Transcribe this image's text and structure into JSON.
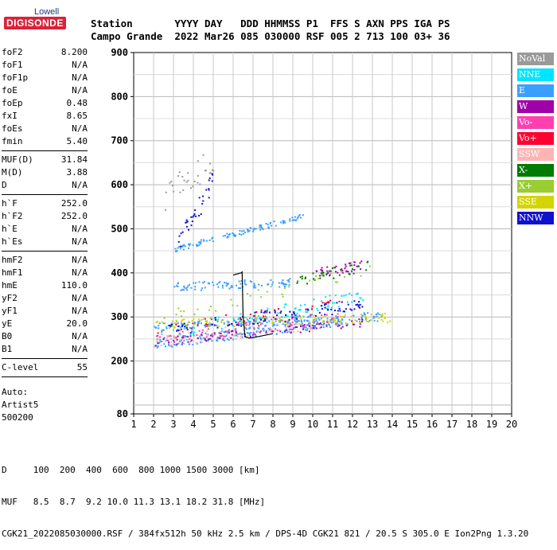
{
  "logo": {
    "brand": "Lowell",
    "product": "DIGISONDE"
  },
  "header": {
    "line1": "Station       YYYY DAY   DDD HHMMSS P1  FFS S AXN PPS IGA PS",
    "line2": "Campo Grande  2022 Mar26 085 030000 RSF 005 2 713 100 03+ 36"
  },
  "params": [
    {
      "k": "foF2",
      "v": "8.200"
    },
    {
      "k": "foF1",
      "v": "N/A"
    },
    {
      "k": "foF1p",
      "v": "N/A"
    },
    {
      "k": "foE",
      "v": "N/A"
    },
    {
      "k": "foEp",
      "v": "0.48"
    },
    {
      "k": "fxI",
      "v": "8.65"
    },
    {
      "k": "foEs",
      "v": "N/A"
    },
    {
      "k": "fmin",
      "v": "5.40",
      "sep": true
    },
    {
      "k": "MUF(D)",
      "v": "31.84"
    },
    {
      "k": "M(D)",
      "v": "3.88"
    },
    {
      "k": "D",
      "v": "N/A",
      "sep": true
    },
    {
      "k": "h`F",
      "v": "252.0"
    },
    {
      "k": "h`F2",
      "v": "252.0"
    },
    {
      "k": "h`E",
      "v": "N/A"
    },
    {
      "k": "h`Es",
      "v": "N/A",
      "sep": true
    },
    {
      "k": "hmF2",
      "v": "N/A"
    },
    {
      "k": "hmF1",
      "v": "N/A"
    },
    {
      "k": "hmE",
      "v": "110.0"
    },
    {
      "k": "yF2",
      "v": "N/A"
    },
    {
      "k": "yF1",
      "v": "N/A"
    },
    {
      "k": "yE",
      "v": "20.0"
    },
    {
      "k": "B0",
      "v": "N/A"
    },
    {
      "k": "B1",
      "v": "N/A",
      "sep": true
    },
    {
      "k": "C-level",
      "v": "55",
      "sep": true
    }
  ],
  "auto": [
    "Auto:",
    "Artist5",
    "500200"
  ],
  "legend": [
    {
      "label": "NoVal",
      "bg": "#9a9a9a",
      "fg": "#ffffff"
    },
    {
      "label": "NNE",
      "bg": "#00e5ff",
      "fg": "#ffffff"
    },
    {
      "label": "E",
      "bg": "#3aa0ff",
      "fg": "#ffffff"
    },
    {
      "label": "W",
      "bg": "#a000a8",
      "fg": "#ffffff"
    },
    {
      "label": "Vo-",
      "bg": "#ff3fb0",
      "fg": "#ffffff"
    },
    {
      "label": "Vo+",
      "bg": "#ff0030",
      "fg": "#ffffff"
    },
    {
      "label": "SSW",
      "bg": "#ffb4b4",
      "fg": "#ffffff"
    },
    {
      "label": "X-",
      "bg": "#007a00",
      "fg": "#ffffff"
    },
    {
      "label": "X+",
      "bg": "#9acd32",
      "fg": "#ffffff"
    },
    {
      "label": "SSE",
      "bg": "#d4d400",
      "fg": "#ffffff"
    },
    {
      "label": "NNW",
      "bg": "#1010d0",
      "fg": "#ffffff"
    }
  ],
  "bottom": {
    "line1": "D     100  200  400  600  800 1000 1500 3000 [km]",
    "line2": "MUF   8.5  8.7  9.2 10.0 11.3 13.1 18.2 31.8 [MHz]",
    "line3": "CGK21_2022085030000.RSF / 384fx512h 50 kHz 2.5 km / DPS-4D CGK21 821 / 20.5 S 305.0 E Ion2Png 1.3.20"
  },
  "chart_data": {
    "type": "scatter",
    "x_ticks": [
      "1",
      "2",
      "3",
      "4",
      "5",
      "6",
      "7",
      "8",
      "9",
      "10",
      "11",
      "12",
      "13",
      "14",
      "15",
      "16",
      "17",
      "18",
      "19",
      "20"
    ],
    "y_ticks": [
      "80",
      "200",
      "300",
      "400",
      "500",
      "600",
      "700",
      "800",
      "900"
    ],
    "xlim": [
      1,
      20
    ],
    "ylim": [
      80,
      900
    ],
    "grid": true,
    "trace": {
      "name": "",
      "color": "#000000",
      "x": [
        6.0,
        6.4,
        6.45,
        6.5,
        6.6,
        6.8,
        7.0,
        8.0
      ],
      "y": [
        395,
        400,
        402,
        300,
        255,
        252,
        253,
        262
      ]
    },
    "series": [
      {
        "name": "E",
        "color": "#3aa0ff",
        "x0": 2.0,
        "x1": 13.5,
        "y0": 240,
        "y1": 305,
        "spread": 12,
        "n": 260
      },
      {
        "name": "E",
        "color": "#3aa0ff",
        "x0": 2.0,
        "x1": 10.0,
        "y0": 280,
        "y1": 300,
        "spread": 8,
        "n": 120
      },
      {
        "name": "E",
        "color": "#3aa0ff",
        "x0": 3.0,
        "x1": 9.5,
        "y0": 455,
        "y1": 530,
        "spread": 6,
        "n": 110
      },
      {
        "name": "E",
        "color": "#3aa0ff",
        "x0": 3.0,
        "x1": 9.0,
        "y0": 370,
        "y1": 380,
        "spread": 10,
        "n": 90
      },
      {
        "name": "NNE",
        "color": "#00e5ff",
        "x0": 2.0,
        "x1": 12.5,
        "y0": 260,
        "y1": 350,
        "spread": 15,
        "n": 110
      },
      {
        "name": "W",
        "color": "#a000a8",
        "x0": 2.0,
        "x1": 12.5,
        "y0": 245,
        "y1": 290,
        "spread": 10,
        "n": 90
      },
      {
        "name": "W",
        "color": "#a000a8",
        "x0": 10.0,
        "x1": 12.5,
        "y0": 400,
        "y1": 420,
        "spread": 10,
        "n": 40
      },
      {
        "name": "Vo-",
        "color": "#ff3fb0",
        "x0": 2.0,
        "x1": 11.5,
        "y0": 255,
        "y1": 300,
        "spread": 15,
        "n": 70
      },
      {
        "name": "Vo+",
        "color": "#ff0030",
        "x0": 2.0,
        "x1": 11.5,
        "y0": 270,
        "y1": 330,
        "spread": 15,
        "n": 40
      },
      {
        "name": "SSW",
        "color": "#ffb4b4",
        "x0": 2.0,
        "x1": 10.0,
        "y0": 245,
        "y1": 285,
        "spread": 15,
        "n": 80
      },
      {
        "name": "X-",
        "color": "#007a00",
        "x0": 9.0,
        "x1": 12.8,
        "y0": 380,
        "y1": 420,
        "spread": 12,
        "n": 35
      },
      {
        "name": "X+",
        "color": "#9acd32",
        "x0": 2.5,
        "x1": 13.0,
        "y0": 300,
        "y1": 410,
        "spread": 15,
        "n": 40
      },
      {
        "name": "SSE",
        "color": "#d4d400",
        "x0": 2.0,
        "x1": 14.0,
        "y0": 285,
        "y1": 300,
        "spread": 10,
        "n": 110
      },
      {
        "name": "NNW",
        "color": "#1010d0",
        "x0": 2.5,
        "x1": 12.5,
        "y0": 270,
        "y1": 330,
        "spread": 15,
        "n": 90
      },
      {
        "name": "NNW",
        "color": "#1010d0",
        "x0": 3.2,
        "x1": 5.0,
        "y0": 470,
        "y1": 610,
        "spread": 25,
        "n": 35
      },
      {
        "name": "NoVal",
        "color": "#9a9a9a",
        "x0": 2.5,
        "x1": 5.0,
        "y0": 560,
        "y1": 670,
        "spread": 40,
        "n": 30
      }
    ]
  }
}
